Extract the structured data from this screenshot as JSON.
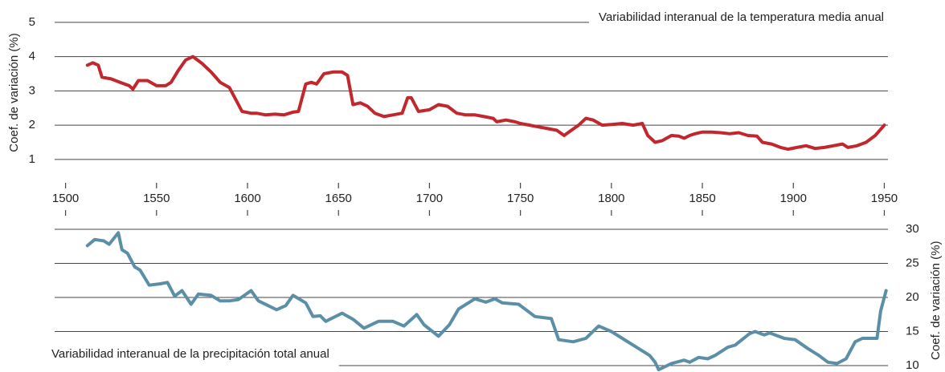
{
  "chart_data": [
    {
      "type": "line",
      "title": "Variabilidad interanual de la temperatura media anual",
      "title_position": "top-right",
      "ylabel": "Coef. de variación (%)",
      "ylabel_side": "left",
      "color": "#c1272d",
      "grid": true,
      "xlim": [
        1494,
        1952
      ],
      "xticks": [
        1500,
        1550,
        1600,
        1650,
        1700,
        1750,
        1800,
        1850,
        1900,
        1950
      ],
      "ylim": [
        0.6,
        5.3
      ],
      "yticks": [
        1,
        2,
        3,
        4,
        5
      ],
      "x": [
        1512,
        1515,
        1518,
        1520,
        1525,
        1530,
        1535,
        1537,
        1540,
        1545,
        1550,
        1555,
        1558,
        1562,
        1566,
        1570,
        1575,
        1580,
        1585,
        1590,
        1593,
        1597,
        1602,
        1605,
        1610,
        1615,
        1620,
        1625,
        1628,
        1632,
        1635,
        1638,
        1642,
        1647,
        1652,
        1655,
        1658,
        1662,
        1666,
        1670,
        1675,
        1680,
        1685,
        1688,
        1690,
        1694,
        1700,
        1705,
        1710,
        1715,
        1720,
        1725,
        1730,
        1735,
        1737,
        1742,
        1747,
        1750,
        1755,
        1760,
        1765,
        1770,
        1774,
        1778,
        1782,
        1786,
        1790,
        1795,
        1800,
        1806,
        1812,
        1817,
        1820,
        1824,
        1828,
        1833,
        1837,
        1840,
        1843,
        1846,
        1850,
        1855,
        1860,
        1865,
        1870,
        1875,
        1880,
        1883,
        1888,
        1893,
        1897,
        1902,
        1907,
        1912,
        1917,
        1922,
        1927,
        1930,
        1935,
        1940,
        1945,
        1950
      ],
      "values": [
        3.75,
        3.82,
        3.75,
        3.4,
        3.35,
        3.25,
        3.15,
        3.05,
        3.3,
        3.3,
        3.15,
        3.15,
        3.25,
        3.6,
        3.9,
        4.0,
        3.8,
        3.55,
        3.25,
        3.1,
        2.8,
        2.4,
        2.35,
        2.35,
        2.3,
        2.32,
        2.3,
        2.38,
        2.4,
        3.2,
        3.25,
        3.2,
        3.5,
        3.55,
        3.55,
        3.45,
        2.6,
        2.65,
        2.55,
        2.35,
        2.25,
        2.3,
        2.35,
        2.8,
        2.8,
        2.4,
        2.45,
        2.6,
        2.55,
        2.35,
        2.3,
        2.3,
        2.25,
        2.2,
        2.1,
        2.15,
        2.1,
        2.05,
        2.0,
        1.95,
        1.9,
        1.85,
        1.7,
        1.85,
        2.0,
        2.2,
        2.15,
        2.0,
        2.02,
        2.05,
        2.0,
        2.05,
        1.7,
        1.5,
        1.55,
        1.7,
        1.68,
        1.62,
        1.7,
        1.75,
        1.8,
        1.8,
        1.78,
        1.75,
        1.78,
        1.7,
        1.68,
        1.5,
        1.45,
        1.35,
        1.3,
        1.35,
        1.4,
        1.32,
        1.35,
        1.4,
        1.45,
        1.35,
        1.4,
        1.5,
        1.7,
        2.0
      ]
    },
    {
      "type": "line",
      "title": "Variabilidad interanual de la precipitación total anual",
      "title_position": "bottom-left",
      "ylabel": "Coef. de variación (%)",
      "ylabel_side": "right",
      "color": "#5b8fa8",
      "grid": true,
      "xlim": [
        1494,
        1952
      ],
      "xticks": [
        1500,
        1550,
        1600,
        1650,
        1700,
        1750,
        1800,
        1850,
        1900,
        1950
      ],
      "ylim": [
        9,
        32
      ],
      "yticks": [
        10,
        15,
        20,
        25,
        30
      ],
      "x": [
        1512,
        1516,
        1521,
        1524,
        1529,
        1531,
        1534,
        1538,
        1541,
        1546,
        1552,
        1556,
        1560,
        1564,
        1569,
        1573,
        1580,
        1585,
        1590,
        1595,
        1602,
        1606,
        1616,
        1621,
        1625,
        1632,
        1636,
        1640,
        1643,
        1652,
        1658,
        1664,
        1672,
        1680,
        1686,
        1693,
        1697,
        1705,
        1711,
        1716,
        1725,
        1731,
        1736,
        1740,
        1749,
        1758,
        1767,
        1771,
        1779,
        1786,
        1793,
        1800,
        1806,
        1815,
        1821,
        1824,
        1826,
        1833,
        1840,
        1843,
        1848,
        1853,
        1857,
        1864,
        1868,
        1876,
        1879,
        1884,
        1887,
        1895,
        1901,
        1908,
        1914,
        1919,
        1924,
        1929,
        1934,
        1938,
        1943,
        1946,
        1948,
        1951
      ],
      "values": [
        27.6,
        28.5,
        28.3,
        27.8,
        29.5,
        27,
        26.5,
        24.5,
        24,
        21.8,
        22,
        22.2,
        20.2,
        21,
        19,
        20.5,
        20.3,
        19.5,
        19.5,
        19.7,
        21,
        19.5,
        18.2,
        18.8,
        20.3,
        19.2,
        17.2,
        17.3,
        16.5,
        17.7,
        16.8,
        15.5,
        16.5,
        16.5,
        15.8,
        17.5,
        16,
        14.3,
        16,
        18.3,
        19.8,
        19.3,
        19.8,
        19.2,
        19,
        17.2,
        16.9,
        13.8,
        13.5,
        14,
        15.8,
        15,
        14,
        12.5,
        11.5,
        10.5,
        9.4,
        10.3,
        10.8,
        10.5,
        11.2,
        11,
        11.5,
        12.7,
        13,
        14.7,
        15,
        14.5,
        14.8,
        14,
        13.8,
        12.5,
        11.5,
        10.5,
        10.3,
        11,
        13.5,
        14,
        14,
        14,
        18,
        21
      ]
    }
  ]
}
